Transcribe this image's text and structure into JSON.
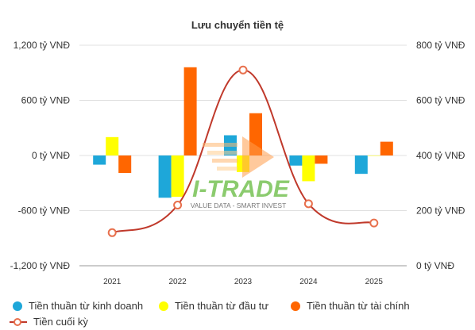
{
  "chart_data": {
    "type": "bar",
    "title": "Lưu chuyển tiền tệ",
    "categories": [
      "2021",
      "2022",
      "2023",
      "2024",
      "2025"
    ],
    "series": [
      {
        "name": "Tiền thuần từ kinh doanh",
        "type": "bar",
        "axis": "left",
        "color": "#1ea7d9",
        "values": [
          -100,
          -460,
          220,
          -110,
          -200
        ]
      },
      {
        "name": "Tiền thuần từ đầu tư",
        "type": "bar",
        "axis": "left",
        "color": "#ffff00",
        "values": [
          200,
          -450,
          -180,
          -280,
          0
        ]
      },
      {
        "name": "Tiền thuần từ tài chính",
        "type": "bar",
        "axis": "left",
        "color": "#ff6600",
        "values": [
          -190,
          960,
          460,
          -90,
          150
        ]
      },
      {
        "name": "Tiền cuối kỳ",
        "type": "line",
        "axis": "right",
        "color": "#c0392b",
        "marker_color": "#e8704d",
        "values": [
          120,
          220,
          710,
          225,
          155
        ]
      }
    ],
    "y_left": {
      "ylim": [
        -1200,
        1200
      ],
      "ticks": [
        "1,200 tỷ VNĐ",
        "600 tỷ VNĐ",
        "0 tỷ VNĐ",
        "-600 tỷ VNĐ",
        "-1,200 tỷ VNĐ"
      ]
    },
    "y_right": {
      "ylim": [
        0,
        800
      ],
      "ticks": [
        "800 tỷ VNĐ",
        "600 tỷ VNĐ",
        "400 tỷ VNĐ",
        "200 tỷ VNĐ",
        "0 tỷ VNĐ"
      ]
    },
    "grid": true,
    "legend": "bottom"
  },
  "watermark": {
    "brand": "I-TRADE",
    "tagline": "VALUE DATA - SMART INVEST"
  }
}
